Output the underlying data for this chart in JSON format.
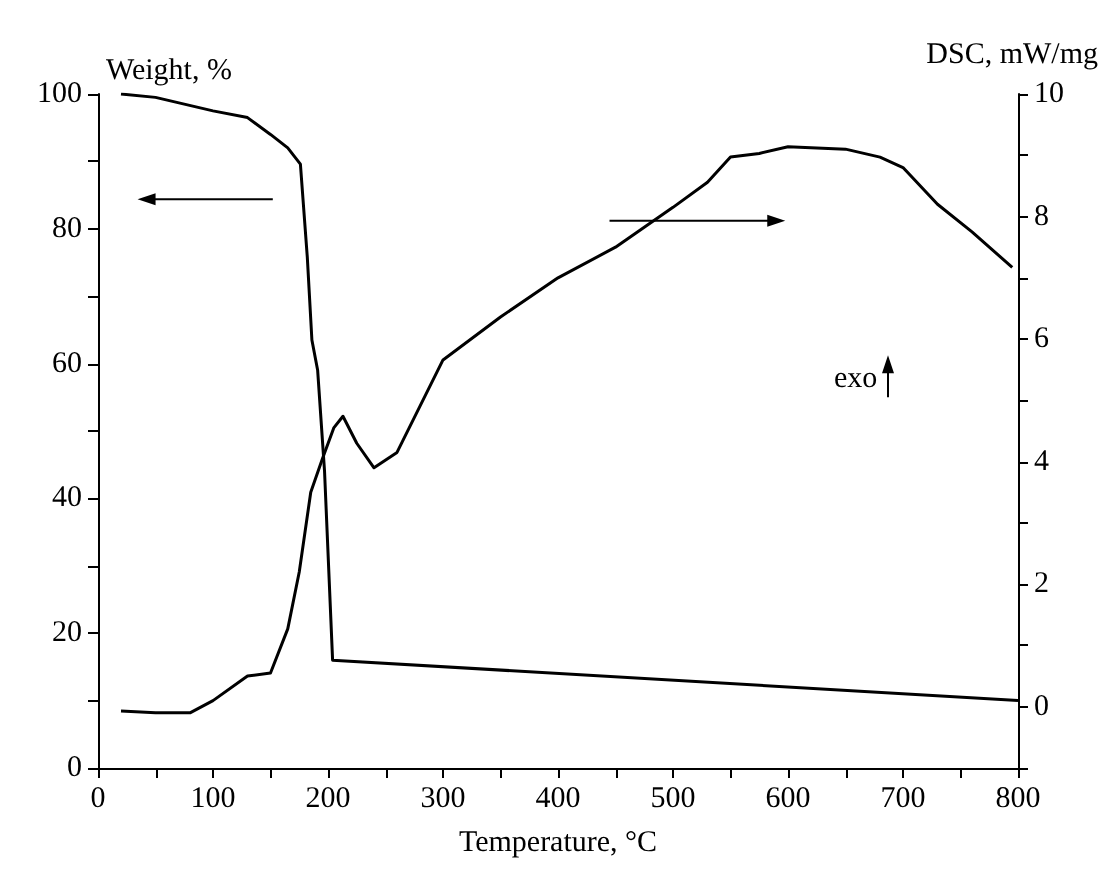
{
  "chart_data": {
    "type": "line",
    "xlabel": "Temperature, °C",
    "ylabel": "Weight, %",
    "y2label": "DSC, mW/mg",
    "xlim": [
      0,
      800
    ],
    "xticks": [
      0,
      {
        "value": 50,
        "label": null
      },
      100,
      {
        "value": 150,
        "label": null
      },
      200,
      {
        "value": 250,
        "label": null
      },
      300,
      {
        "value": 350,
        "label": null
      },
      400,
      {
        "value": 450,
        "label": null
      },
      500,
      {
        "value": 550,
        "label": null
      },
      600,
      {
        "value": 650,
        "label": null
      },
      700,
      {
        "value": 750,
        "label": null
      },
      800
    ],
    "ylim": [
      0,
      100
    ],
    "yticks": [
      0,
      {
        "value": 10,
        "label": null
      },
      20,
      {
        "value": 30,
        "label": null
      },
      40,
      {
        "value": 50,
        "label": null
      },
      60,
      {
        "value": 70,
        "label": null
      },
      80,
      {
        "value": 90,
        "label": null
      },
      100
    ],
    "y2lim": [
      -1,
      10
    ],
    "y2ticks": [
      {
        "value": -1,
        "label": null
      },
      0,
      {
        "value": 1,
        "label": null
      },
      2,
      {
        "value": 3,
        "label": null
      },
      4,
      {
        "value": 5,
        "label": null
      },
      6,
      {
        "value": 7,
        "label": null
      },
      8,
      {
        "value": 9,
        "label": null
      },
      10
    ],
    "grid": false,
    "marker": "none",
    "line_style": "solid",
    "annotations": [
      "exo"
    ],
    "series": [
      {
        "color": "#000000",
        "x": [
          20,
          50,
          100,
          130,
          150,
          165,
          176,
          182,
          186,
          191,
          197,
          204,
          800
        ],
        "values": [
          100,
          99.5,
          97.5,
          96.5,
          94,
          92,
          89.6,
          75.8,
          63.5,
          59,
          44,
          16,
          10
        ]
      },
      {
        "color": "#000000",
        "axis": "y2",
        "x": [
          20,
          50,
          80,
          100,
          130,
          150,
          165,
          175,
          185,
          195,
          205,
          213,
          225,
          240,
          260,
          300,
          350,
          400,
          450,
          500,
          530,
          550,
          575,
          600,
          650,
          680,
          700,
          730,
          760,
          795
        ],
        "values": [
          -0.07,
          -0.1,
          -0.1,
          0.1,
          0.5,
          0.55,
          1.27,
          2.2,
          3.5,
          4.04,
          4.55,
          4.74,
          4.3,
          3.9,
          4.15,
          5.66,
          6.36,
          7.0,
          7.5,
          8.15,
          8.56,
          8.97,
          9.03,
          9.14,
          9.1,
          8.97,
          8.8,
          8.2,
          7.75,
          7.17
        ]
      }
    ]
  }
}
